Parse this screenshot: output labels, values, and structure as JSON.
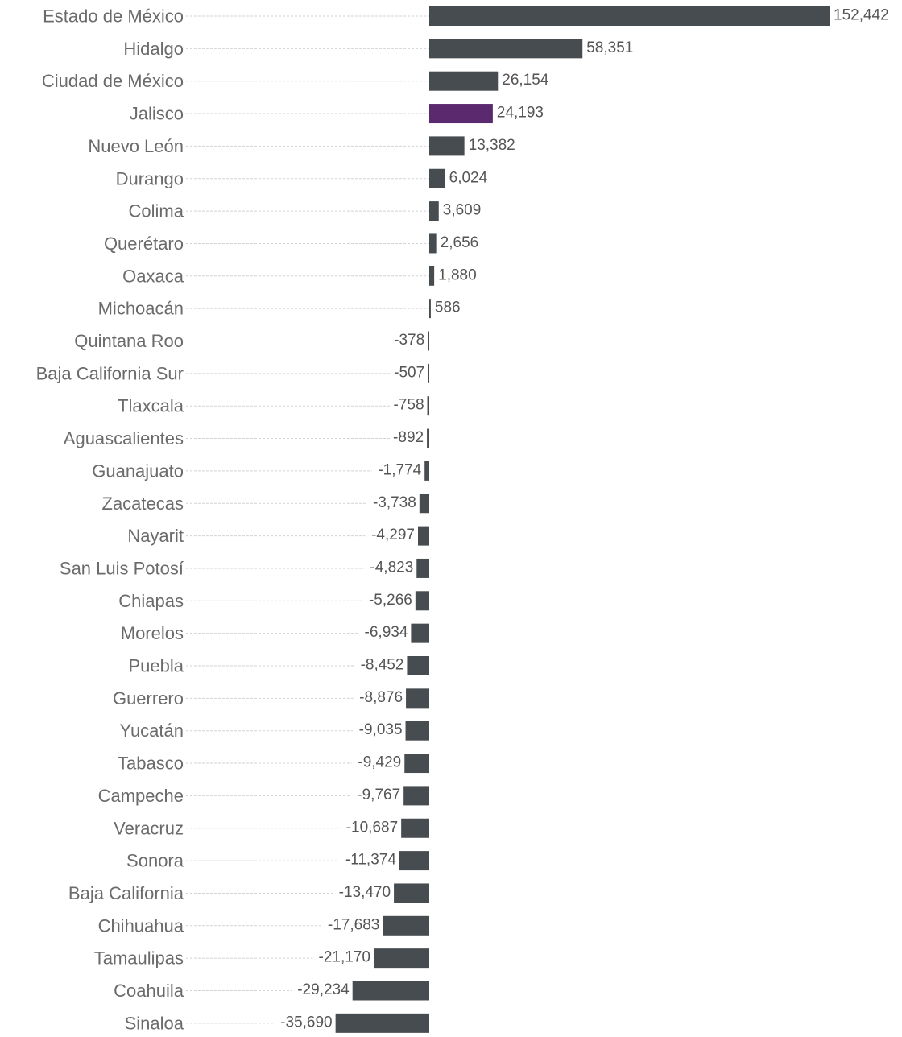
{
  "chart_data": {
    "type": "bar",
    "orientation": "horizontal",
    "title": "",
    "xlabel": "",
    "ylabel": "",
    "grid": "dotted leader lines from labels",
    "categories": [
      "Estado de México",
      "Hidalgo",
      "Ciudad de México",
      "Jalisco",
      "Nuevo León",
      "Durango",
      "Colima",
      "Querétaro",
      "Oaxaca",
      "Michoacán",
      "Quintana Roo",
      "Baja California Sur",
      "Tlaxcala",
      "Aguascalientes",
      "Guanajuato",
      "Zacatecas",
      "Nayarit",
      "San Luis Potosí",
      "Chiapas",
      "Morelos",
      "Puebla",
      "Guerrero",
      "Yucatán",
      "Tabasco",
      "Campeche",
      "Veracruz",
      "Sonora",
      "Baja California",
      "Chihuahua",
      "Tamaulipas",
      "Coahuila",
      "Sinaloa"
    ],
    "values": [
      152442,
      58351,
      26154,
      24193,
      13382,
      6024,
      3609,
      2656,
      1880,
      586,
      -378,
      -507,
      -758,
      -892,
      -1774,
      -3738,
      -4297,
      -4823,
      -5266,
      -6934,
      -8452,
      -8876,
      -9035,
      -9429,
      -9767,
      -10687,
      -11374,
      -13470,
      -17683,
      -21170,
      -29234,
      -35690
    ],
    "value_labels": [
      "152,442",
      "58,351",
      "26,154",
      "24,193",
      "13,382",
      "6,024",
      "3,609",
      "2,656",
      "1,880",
      "586",
      "-378",
      "-507",
      "-758",
      "-892",
      "-1,774",
      "-3,738",
      "-4,297",
      "-4,823",
      "-5,266",
      "-6,934",
      "-8,452",
      "-8,876",
      "-9,035",
      "-9,429",
      "-9,767",
      "-10,687",
      "-11,374",
      "-13,470",
      "-17,683",
      "-21,170",
      "-29,234",
      "-35,690"
    ],
    "highlight": "Jalisco",
    "colors": {
      "bar": "#474c50",
      "highlight": "#5b2a6e",
      "category_label": "#6b6b6b",
      "value_label": "#555555",
      "leader": "#d2d2d2"
    }
  }
}
